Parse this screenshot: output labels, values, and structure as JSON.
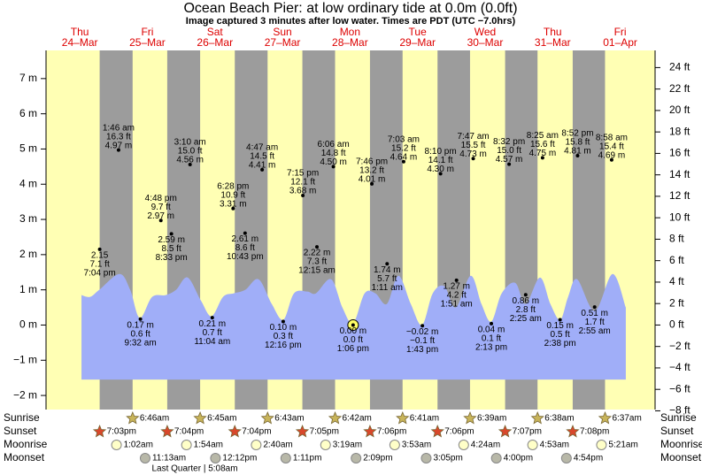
{
  "chart_data": {
    "type": "tide",
    "title": "Ocean Beach Pier: at low  ordinary tide at 0.0m (0.0ft)",
    "subtitle": "Image captured 3 minutes after low water. Times are PDT (UTC −7.0hrs)",
    "weekdays": [
      "Thu",
      "Fri",
      "Sat",
      "Sun",
      "Mon",
      "Tue",
      "Wed",
      "Thu",
      "Fri"
    ],
    "dates": [
      "24–Mar",
      "25–Mar",
      "26–Mar",
      "27–Mar",
      "28–Mar",
      "29–Mar",
      "30–Mar",
      "31–Mar",
      "01–Apr"
    ],
    "xlim": [
      0,
      216.4
    ],
    "ylim": [
      -2.4,
      7.8
    ],
    "yticks": [
      {
        "value": -2,
        "label": "−2 m"
      },
      {
        "value": -1,
        "label": "−1 m"
      },
      {
        "value": 0,
        "label": "0 m"
      },
      {
        "value": 1,
        "label": "1 m"
      },
      {
        "value": 2,
        "label": "2 m"
      },
      {
        "value": 3,
        "label": "3 m"
      },
      {
        "value": 4,
        "label": "4 m"
      },
      {
        "value": 5,
        "label": "5 m"
      },
      {
        "value": 6,
        "label": "6 m"
      },
      {
        "value": 7,
        "label": "7 m"
      }
    ],
    "y2lim": [
      -7.88,
      25.6
    ],
    "y2ticks": [
      {
        "value": -8,
        "label": "−8 ft"
      },
      {
        "value": -6,
        "label": "−6 ft"
      },
      {
        "value": -4,
        "label": "−4 ft"
      },
      {
        "value": -2,
        "label": "−2 ft"
      },
      {
        "value": 0,
        "label": "0 ft"
      },
      {
        "value": 2,
        "label": "2 ft"
      },
      {
        "value": 4,
        "label": "4 ft"
      },
      {
        "value": 6,
        "label": "6 ft"
      },
      {
        "value": 8,
        "label": "8 ft"
      },
      {
        "value": 10,
        "label": "10 ft"
      },
      {
        "value": 12,
        "label": "12 ft"
      },
      {
        "value": 14,
        "label": "14 ft"
      },
      {
        "value": 16,
        "label": "16 ft"
      },
      {
        "value": 18,
        "label": "18 ft"
      },
      {
        "value": 20,
        "label": "20 ft"
      },
      {
        "value": 22,
        "label": "22 ft"
      },
      {
        "value": 24,
        "label": "24 ft"
      }
    ],
    "day_color": "#ffffb4",
    "night_color": "#9c9c9c",
    "curve": {
      "color": "#a0aef8",
      "base": -1.55,
      "x": [
        12.6,
        15.7,
        18.9,
        26.1,
        29.9,
        33.3,
        37.7,
        42.5,
        46.2,
        50.3,
        55.0,
        58.8,
        62.9,
        66.7,
        70.8,
        75.5,
        80.2,
        84.3,
        88.1,
        92.8,
        95.9,
        101.3,
        105.3,
        109.1,
        113.2,
        117.0,
        121.1,
        125.2,
        129.6,
        133.6,
        137.4,
        141.5,
        145.6,
        150.9,
        154.7,
        158.2,
        161.9,
        166.7,
        170.4,
        175.5,
        179.2,
        182.7,
        185.5,
        188.7,
        195.0,
        201.3,
        206.0
      ],
      "values": [
        0.85,
        0.8,
        1.0,
        1.45,
        1.0,
        0.2,
        0.8,
        0.85,
        1.0,
        1.35,
        0.7,
        0.25,
        0.8,
        0.9,
        1.0,
        1.3,
        0.6,
        0.15,
        0.9,
        0.95,
        0.9,
        1.3,
        0.5,
        0.05,
        0.9,
        0.9,
        0.6,
        1.4,
        0.6,
        0.0,
        0.9,
        1.1,
        0.5,
        1.4,
        0.6,
        0.1,
        0.9,
        1.2,
        0.6,
        1.35,
        0.6,
        0.15,
        0.8,
        1.3,
        0.4,
        1.45,
        0.5
      ]
    },
    "extremes": {
      "times": [
        "7:04 pm",
        "1:46 am",
        "9:32 am",
        "4:48 pm",
        "8:33 pm",
        "3:10 am",
        "11:04 am",
        "6:28 pm",
        "10:43 pm",
        "4:47 am",
        "12:16 pm",
        "7:15 pm",
        "12:15 am",
        "6:06 am",
        "1:06 pm",
        "7:46 pm",
        "1:11 am",
        "7:03 am",
        "1:43 pm",
        "8:10 pm",
        "1:51 am",
        "7:47 am",
        "2:13 pm",
        "8:32 pm",
        "2:25 am",
        "8:25 am",
        "2:38 pm",
        "8:52 pm",
        "2:55 am",
        "8:58 am"
      ],
      "values": [
        2.15,
        4.97,
        0.17,
        2.97,
        2.59,
        4.56,
        0.21,
        3.31,
        2.61,
        4.41,
        0.1,
        3.68,
        2.22,
        4.5,
        0.0,
        4.01,
        1.74,
        4.64,
        -0.02,
        4.3,
        1.27,
        4.73,
        0.04,
        4.57,
        0.86,
        4.75,
        0.15,
        4.81,
        0.51,
        4.69
      ],
      "value_labels": [
        "2.15",
        "4.97 m",
        "0.17 m",
        "2.97 m",
        "2.59 m",
        "4.56 m",
        "0.21 m",
        "3.31 m",
        "2.61 m",
        "4.41 m",
        "0.10 m",
        "3.68 m",
        "2.22 m",
        "4.50 m",
        "0.00 m",
        "4.01 m",
        "1.74 m",
        "4.64 m",
        "−0.02 m",
        "4.30 m",
        "1.27 m",
        "4.73 m",
        "0.04 m",
        "4.57 m",
        "0.86 m",
        "4.75 m",
        "0.15 m",
        "4.81 m",
        "0.51 m",
        "4.69 m"
      ],
      "ft_labels": [
        "7.1 ft",
        "16.3 ft",
        "0.6 ft",
        "9.7 ft",
        "8.5 ft",
        "15.0 ft",
        "0.7 ft",
        "10.9 ft",
        "8.6 ft",
        "14.5 ft",
        "0.3 ft",
        "12.1 ft",
        "7.3 ft",
        "14.8 ft",
        "0.0 ft",
        "13.2 ft",
        "5.7 ft",
        "15.2 ft",
        "−0.1 ft",
        "14.1 ft",
        "4.2 ft",
        "15.5 ft",
        "0.1 ft",
        "15.0 ft",
        "2.8 ft",
        "15.6 ft",
        "0.5 ft",
        "15.8 ft",
        "1.7 ft",
        "15.4 ft"
      ],
      "highlight": 14,
      "highlight_color": "#ffff66"
    },
    "sunrise": {
      "label": "Sunrise",
      "color": "#c8b45a",
      "times": [
        "6:46am",
        "6:45am",
        "6:43am",
        "6:42am",
        "6:41am",
        "6:39am",
        "6:38am",
        "6:37am"
      ]
    },
    "sunset": {
      "label": "Sunset",
      "color": "#d9472b",
      "times": [
        "7:03pm",
        "7:04pm",
        "7:04pm",
        "7:05pm",
        "7:06pm",
        "7:06pm",
        "7:07pm",
        "7:08pm"
      ]
    },
    "moonrise": {
      "label": "Moonrise",
      "color": "#ffffc8",
      "times": [
        "1:02am",
        "1:54am",
        "2:40am",
        "3:19am",
        "3:53am",
        "4:24am",
        "4:53am",
        "5:21am"
      ]
    },
    "moonset": {
      "label": "Moonset",
      "color": "#b8b8a8",
      "times": [
        "11:13am",
        "12:12pm",
        "1:11pm",
        "2:09pm",
        "3:05pm",
        "4:00pm",
        "4:54pm"
      ]
    },
    "moon_phase": "Last Quarter | 5:08am"
  }
}
